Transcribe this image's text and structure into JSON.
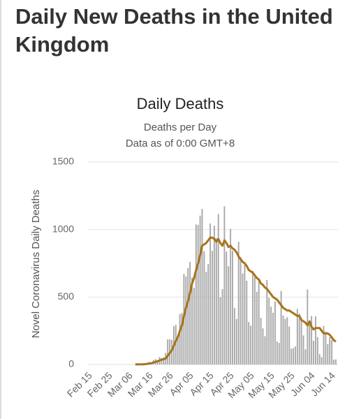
{
  "chart_data": {
    "type": "bar-line",
    "title": "Daily New Deaths in the United Kingdom",
    "chart_title": "Daily Deaths",
    "subtitle": "Deaths per Day",
    "note": "Data as of 0:00 GMT+8",
    "y_label": "Novel Coronavirus Daily Deaths",
    "categories": [
      "Feb 15",
      null,
      null,
      null,
      null,
      null,
      null,
      null,
      null,
      null,
      "Feb 25",
      null,
      null,
      null,
      null,
      null,
      null,
      null,
      null,
      null,
      "Mar 06",
      null,
      null,
      null,
      null,
      null,
      null,
      null,
      null,
      null,
      "Mar 16",
      null,
      null,
      null,
      null,
      null,
      null,
      null,
      null,
      null,
      "Mar 26",
      null,
      null,
      null,
      null,
      null,
      null,
      null,
      null,
      null,
      "Apr 05",
      null,
      null,
      null,
      null,
      null,
      null,
      null,
      null,
      null,
      "Apr 15",
      null,
      null,
      null,
      null,
      null,
      null,
      null,
      null,
      null,
      "Apr 25",
      null,
      null,
      null,
      null,
      null,
      null,
      null,
      null,
      null,
      "May 05",
      null,
      null,
      null,
      null,
      null,
      null,
      null,
      null,
      null,
      "May 15",
      null,
      null,
      null,
      null,
      null,
      null,
      null,
      null,
      null,
      "May 25",
      null,
      null,
      null,
      null,
      null,
      null,
      null,
      null,
      null,
      "Jun 04",
      null,
      null,
      null,
      null,
      null,
      null,
      null,
      null,
      null,
      "Jun 14",
      null
    ],
    "series": [
      {
        "kind": "bar",
        "color": "#a8a8a8",
        "values": [
          0,
          0,
          0,
          0,
          0,
          0,
          0,
          0,
          0,
          0,
          0,
          0,
          0,
          0,
          0,
          0,
          0,
          0,
          0,
          1,
          0,
          1,
          0,
          1,
          1,
          2,
          1,
          10,
          14,
          20,
          16,
          33,
          40,
          33,
          56,
          48,
          54,
          87,
          186,
          187,
          183,
          284,
          294,
          214,
          374,
          382,
          670,
          652,
          714,
          760,
          644,
          568,
          1038,
          1034,
          1103,
          1152,
          839,
          686,
          744,
          1044,
          842,
          1029,
          935,
          1115,
          498,
          559,
          1172,
          837,
          727,
          1005,
          843,
          420,
          338,
          909,
          795,
          674,
          739,
          621,
          315,
          288,
          693,
          649,
          539,
          626,
          346,
          268,
          210,
          627,
          494,
          428,
          384,
          468,
          170,
          160,
          545,
          363,
          338,
          351,
          282,
          118,
          121,
          134,
          412,
          377,
          324,
          215,
          113,
          556,
          324,
          359,
          176,
          357,
          204,
          77,
          55,
          286,
          245,
          151,
          202,
          181,
          36,
          38
        ]
      },
      {
        "kind": "line",
        "color": "#a8731a",
        "values": [
          null,
          null,
          null,
          null,
          null,
          null,
          null,
          null,
          null,
          null,
          null,
          null,
          null,
          null,
          null,
          null,
          null,
          null,
          null,
          null,
          null,
          null,
          1,
          1,
          1,
          1,
          2,
          3,
          5,
          8,
          10,
          15,
          20,
          24,
          30,
          35,
          40,
          45,
          65,
          85,
          105,
          140,
          175,
          205,
          250,
          290,
          360,
          420,
          470,
          530,
          600,
          640,
          700,
          750,
          810,
          880,
          890,
          900,
          920,
          940,
          940,
          930,
          910,
          930,
          900,
          880,
          920,
          900,
          870,
          880,
          860,
          850,
          830,
          800,
          780,
          760,
          750,
          730,
          700,
          690,
          680,
          660,
          640,
          630,
          600,
          590,
          570,
          560,
          540,
          520,
          500,
          490,
          480,
          460,
          440,
          420,
          410,
          400,
          400,
          390,
          380,
          370,
          360,
          360,
          330,
          320,
          310,
          290,
          320,
          280,
          260,
          270,
          270,
          270,
          250,
          230,
          230,
          230,
          220,
          200,
          180,
          170
        ]
      }
    ],
    "ylim": [
      0,
      1500
    ],
    "yticks": [
      0,
      500,
      1000,
      1500
    ],
    "grid": true
  }
}
